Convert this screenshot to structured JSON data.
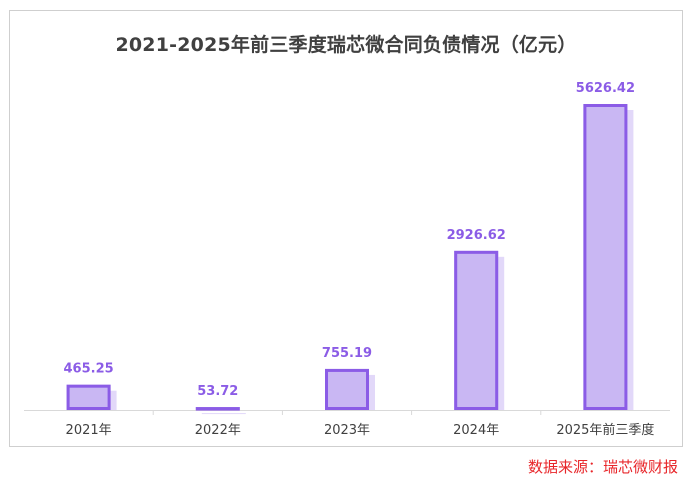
{
  "chart_data": {
    "type": "bar",
    "title": "2021-2025年前三季度瑞芯微合同负债情况（亿元）",
    "categories": [
      "2021年",
      "2022年",
      "2023年",
      "2024年",
      "2025年前三季度"
    ],
    "values": [
      465.25,
      53.72,
      755.19,
      2926.62,
      5626.42
    ],
    "value_labels": [
      "465.25",
      "53.72",
      "755.19",
      "2926.62",
      "5626.42"
    ],
    "ylim": [
      0,
      5626.42
    ],
    "grid": false,
    "legend": "none",
    "colors": {
      "bar_fill": "#c9b7f3",
      "bar_shadow": "#e2d8f9",
      "bar_outline": "#8b5ce6",
      "value_label": "#8b5ce6",
      "axis": "#d9d9d9",
      "tick_label": "#404040"
    }
  },
  "source": "数据来源：瑞芯微财报"
}
